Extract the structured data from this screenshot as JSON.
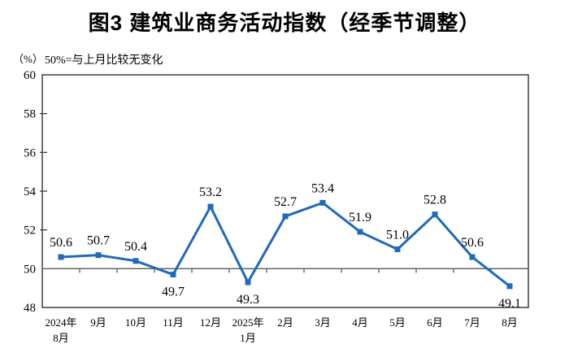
{
  "title": "图3 建筑业商务活动指数（经季节调整）",
  "unit_label": "（%）",
  "subtitle": "50%=与上月比较无变化",
  "chart_data": {
    "type": "line",
    "title": "图3 建筑业商务活动指数（经季节调整）",
    "subtitle": "50%=与上月比较无变化",
    "unit": "（%）",
    "categories": [
      "2024年\n8月",
      "9月",
      "10月",
      "11月",
      "12月",
      "2025年\n1月",
      "2月",
      "3月",
      "4月",
      "5月",
      "6月",
      "7月",
      "8月"
    ],
    "values": [
      50.6,
      50.7,
      50.4,
      49.7,
      53.2,
      49.3,
      52.7,
      53.4,
      51.9,
      51.0,
      52.8,
      50.6,
      49.1
    ],
    "value_labels": [
      "50.6",
      "50.7",
      "50.4",
      "49.7",
      "53.2",
      "49.3",
      "52.7",
      "53.4",
      "51.9",
      "51.0",
      "52.8",
      "50.6",
      "49.1"
    ],
    "label_positions": [
      "above",
      "above",
      "above",
      "below",
      "above",
      "below",
      "above",
      "above",
      "above",
      "above",
      "above",
      "above",
      "below"
    ],
    "xlabel": "",
    "ylabel": "（%）",
    "ylim": [
      48,
      60
    ],
    "ytick_step": 2,
    "yticks": [
      48,
      50,
      52,
      54,
      56,
      58,
      60
    ],
    "reference_line": 50,
    "grid": false,
    "legend": "none",
    "line_color": "#1e6abd",
    "marker": "square",
    "axis_color": "#3f3f3f",
    "ref_line_color": "#5a5a5a"
  }
}
